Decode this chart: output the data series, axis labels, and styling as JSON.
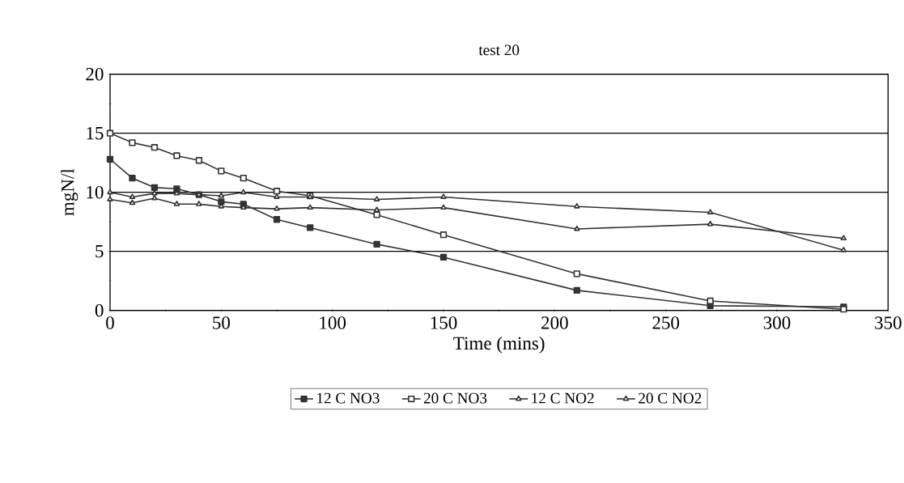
{
  "chart_data": {
    "type": "line",
    "title": "test 20",
    "xlabel": "Time (mins)",
    "ylabel": "mgN/l",
    "x": [
      0,
      10,
      20,
      30,
      40,
      50,
      60,
      75,
      90,
      120,
      150,
      210,
      270,
      330
    ],
    "series": [
      {
        "name": "12 C NO3",
        "color": "#333333",
        "marker": "square",
        "values": [
          12.8,
          11.2,
          10.4,
          10.3,
          9.8,
          9.2,
          9.0,
          7.7,
          7.0,
          5.6,
          4.5,
          1.7,
          0.4,
          0.3
        ]
      },
      {
        "name": "20 C NO3",
        "color": "#333333",
        "marker": "square",
        "values": [
          15.0,
          14.2,
          13.8,
          13.1,
          12.7,
          11.8,
          11.2,
          10.1,
          9.7,
          8.1,
          6.4,
          3.1,
          0.8,
          0.1
        ]
      },
      {
        "name": "12 C NO2",
        "color": "#333333",
        "marker": "triangle",
        "values": [
          10.0,
          9.6,
          9.9,
          9.9,
          9.8,
          9.7,
          10.0,
          9.6,
          9.6,
          9.4,
          9.6,
          8.8,
          8.3,
          5.1
        ]
      },
      {
        "name": "20 C NO2",
        "color": "#333333",
        "marker": "triangle",
        "values": [
          9.4,
          9.1,
          9.5,
          9.0,
          9.0,
          8.8,
          8.7,
          8.6,
          8.7,
          8.5,
          8.7,
          6.9,
          7.3,
          6.1
        ]
      }
    ],
    "xlim": [
      0,
      350
    ],
    "xticks": [
      0,
      50,
      100,
      150,
      200,
      250,
      300,
      350
    ],
    "ylim": [
      0,
      20
    ],
    "yticks": [
      0,
      5,
      10,
      15,
      20
    ],
    "grid": "y",
    "legend": "bottom",
    "line_style": "solid"
  }
}
